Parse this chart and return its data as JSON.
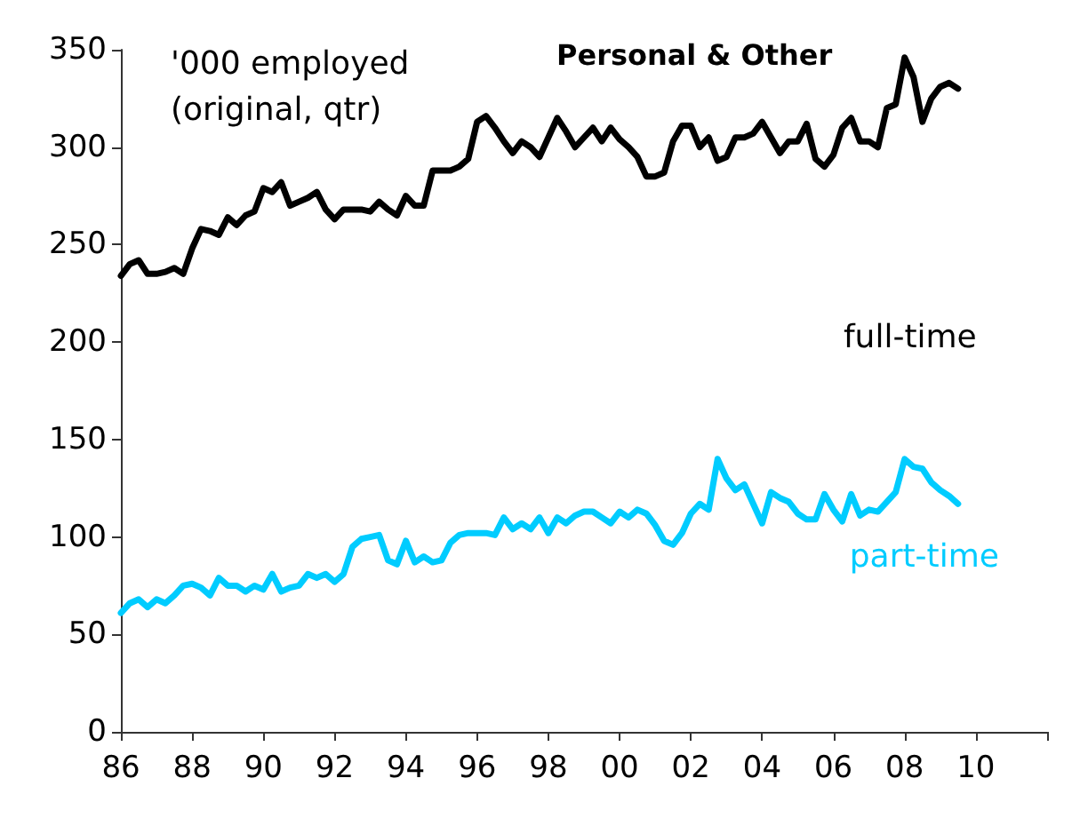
{
  "chart_data": {
    "type": "line",
    "title": "Personal & Other",
    "annotations": [
      "'000 employed\n(original, qtr)"
    ],
    "xlim": [
      1986,
      2012
    ],
    "xticks": [
      {
        "value": 1986,
        "label": "86"
      },
      {
        "value": 1988,
        "label": "88"
      },
      {
        "value": 1990,
        "label": "90"
      },
      {
        "value": 1992,
        "label": "92"
      },
      {
        "value": 1994,
        "label": "94"
      },
      {
        "value": 1996,
        "label": "96"
      },
      {
        "value": 1998,
        "label": "98"
      },
      {
        "value": 2000,
        "label": "00"
      },
      {
        "value": 2002,
        "label": "02"
      },
      {
        "value": 2004,
        "label": "04"
      },
      {
        "value": 2006,
        "label": "06"
      },
      {
        "value": 2008,
        "label": "08"
      },
      {
        "value": 2010,
        "label": "10"
      },
      {
        "value": 2012,
        "label": null
      }
    ],
    "ylim": [
      0,
      350
    ],
    "yticks": [
      0,
      50,
      100,
      150,
      200,
      250,
      300,
      350
    ],
    "grid": false,
    "marker": "none",
    "line_style": "solid",
    "legend": false,
    "x": [
      1986,
      1986.25,
      1986.5,
      1986.75,
      1987,
      1987.25,
      1987.5,
      1987.75,
      1988,
      1988.25,
      1988.5,
      1988.75,
      1989,
      1989.25,
      1989.5,
      1989.75,
      1990,
      1990.25,
      1990.5,
      1990.75,
      1991,
      1991.25,
      1991.5,
      1991.75,
      1992,
      1992.25,
      1992.5,
      1992.75,
      1993,
      1993.25,
      1993.5,
      1993.75,
      1994,
      1994.25,
      1994.5,
      1994.75,
      1995,
      1995.25,
      1995.5,
      1995.75,
      1996,
      1996.25,
      1996.5,
      1996.75,
      1997,
      1997.25,
      1997.5,
      1997.75,
      1998,
      1998.25,
      1998.5,
      1998.75,
      1999,
      1999.25,
      1999.5,
      1999.75,
      2000,
      2000.25,
      2000.5,
      2000.75,
      2001,
      2001.25,
      2001.5,
      2001.75,
      2002,
      2002.25,
      2002.5,
      2002.75,
      2003,
      2003.25,
      2003.5,
      2003.75,
      2004,
      2004.25,
      2004.5,
      2004.75,
      2005,
      2005.25,
      2005.5,
      2005.75,
      2006,
      2006.25,
      2006.5,
      2006.75,
      2007,
      2007.25,
      2007.5,
      2007.75,
      2008,
      2008.25,
      2008.5,
      2008.75,
      2009,
      2009.25,
      2009.5
    ],
    "series": [
      {
        "name": "full-time",
        "color": "#000000",
        "values": [
          234,
          240,
          242,
          235,
          235,
          236,
          238,
          235,
          248,
          258,
          257,
          255,
          264,
          260,
          265,
          267,
          279,
          277,
          282,
          270,
          272,
          274,
          277,
          268,
          263,
          268,
          268,
          268,
          267,
          272,
          268,
          265,
          275,
          270,
          270,
          288,
          288,
          288,
          290,
          294,
          313,
          316,
          310,
          303,
          297,
          303,
          300,
          295,
          305,
          315,
          308,
          300,
          305,
          310,
          303,
          310,
          304,
          300,
          295,
          285,
          285,
          287,
          303,
          311,
          311,
          300,
          305,
          293,
          295,
          305,
          305,
          307,
          313,
          305,
          297,
          303,
          303,
          312,
          294,
          290,
          296,
          310,
          315,
          303,
          303,
          300,
          320,
          322,
          346,
          336,
          313,
          325,
          331,
          333,
          330
        ]
      },
      {
        "name": "part-time",
        "color": "#00ccff",
        "values": [
          61,
          66,
          68,
          64,
          68,
          66,
          70,
          75,
          76,
          74,
          70,
          79,
          75,
          75,
          72,
          75,
          73,
          81,
          72,
          74,
          75,
          81,
          79,
          81,
          77,
          81,
          95,
          99,
          100,
          101,
          88,
          86,
          98,
          87,
          90,
          87,
          88,
          97,
          101,
          102,
          102,
          102,
          101,
          110,
          104,
          107,
          104,
          110,
          102,
          110,
          107,
          111,
          113,
          113,
          110,
          107,
          113,
          110,
          114,
          112,
          106,
          98,
          96,
          102,
          112,
          117,
          114,
          140,
          130,
          124,
          127,
          117,
          107,
          123,
          120,
          118,
          112,
          109,
          109,
          122,
          114,
          108,
          122,
          111,
          114,
          113,
          118,
          123,
          140,
          136,
          135,
          128,
          124,
          121,
          117
        ]
      }
    ]
  }
}
